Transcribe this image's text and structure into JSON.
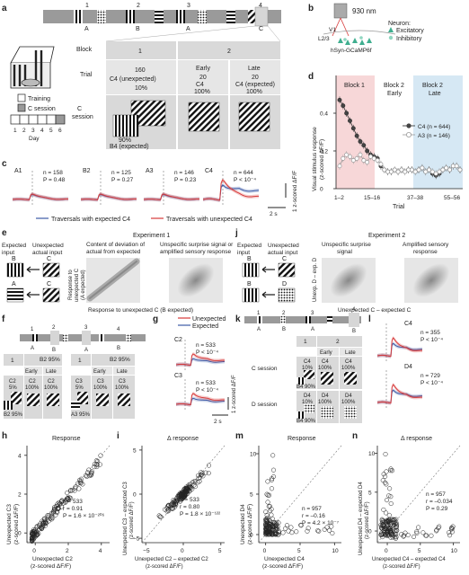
{
  "panel_labels": {
    "a": "a",
    "b": "b",
    "c": "c",
    "d": "d",
    "e": "e",
    "f": "f",
    "g": "g",
    "h": "h",
    "i": "i",
    "j": "j",
    "k": "k",
    "l": "l",
    "m": "m",
    "n": "n"
  },
  "a": {
    "track_nums": [
      "1",
      "2",
      "3",
      "4"
    ],
    "track_letters": [
      "A",
      "B",
      "A",
      "C"
    ],
    "training": "Training",
    "c_session": "C session",
    "day_label": "Day",
    "days": [
      "1",
      "2",
      "3",
      "4",
      "5",
      "6"
    ],
    "table": {
      "block_label": "Block",
      "trial_label": "Trial",
      "csess_label": "C\nsession",
      "block1": "1",
      "block2": "2",
      "early": "Early",
      "late": "Late",
      "t160": "160",
      "t20a": "20",
      "t20b": "20",
      "c4_unexp": "C4 (unexpected)",
      "c4_10": "C4",
      "p10": "10%",
      "c4_100": "C4",
      "p100": "100%",
      "c4_exp": "C4 (expected)",
      "p10b": "10%",
      "p100b": "100%",
      "p90": "90%",
      "b4_exp": "B4 (expected)"
    }
  },
  "b": {
    "wavelength": "930 nm",
    "v1": "V1",
    "l23": "L2/3",
    "construct": "hSyn-GCaMP6f",
    "neuron": "Neuron:",
    "excitatory": "Excitatory",
    "inhibitory": "Inhibitory",
    "colors": {
      "exc": "#3fae8f",
      "inh": "#8fd6c0"
    }
  },
  "c": {
    "units": "1 z-scored ΔF/F",
    "time": "2 s",
    "legend_expected": "Traversals with expected C4",
    "legend_unexpected": "Traversals with unexpected C4",
    "traces": [
      {
        "name": "A1",
        "n": "n = 158",
        "p": "P = 0.48"
      },
      {
        "name": "B2",
        "n": "n = 125",
        "p": "P = 0.27"
      },
      {
        "name": "A3",
        "n": "n = 146",
        "p": "P = 0.23"
      },
      {
        "name": "C4",
        "n": "n = 644",
        "p": "P < 10⁻⁴"
      }
    ]
  },
  "d": {
    "ylabel1": "Visual stimulus response",
    "ylabel2": "(z-scored ΔF/F)",
    "xlabel": "Trial",
    "block1": "Block 1",
    "block2e1": "Block 2",
    "block2e2": "Early",
    "block2l1": "Block 2",
    "block2l2": "Late",
    "leg_c4": "C4 (n = 644)",
    "leg_a3": "A3 (n = 146)"
  },
  "chart_data": [
    {
      "type": "line",
      "series": [
        {
          "name": "C4 (n = 644)",
          "values": [
            0.47,
            0.44,
            0.4,
            0.36,
            0.32,
            0.28,
            0.25,
            0.23,
            0.2,
            0.18,
            0.17,
            0.16,
            0.12,
            0.1,
            0.09,
            0.09,
            0.1,
            0.09,
            0.1,
            0.09,
            0.1,
            0.1,
            0.09,
            0.1,
            0.11,
            0.09,
            0.1,
            0.08,
            0.07,
            0.08,
            0.1,
            0.11,
            0.1,
            0.12,
            0.12,
            0.1
          ]
        },
        {
          "name": "A3 (n = 146)",
          "values": [
            0.12,
            0.16,
            0.18,
            0.17,
            0.15,
            0.16,
            0.18,
            0.15,
            0.14,
            0.17,
            0.16,
            0.15,
            0.13,
            0.1,
            0.09,
            0.09,
            0.1,
            0.09,
            0.1,
            0.09,
            0.1,
            0.1,
            0.09,
            0.1,
            0.11,
            0.09,
            0.1,
            0.09,
            0.08,
            0.09,
            0.1,
            0.11,
            0.1,
            0.12,
            0.12,
            0.1
          ]
        }
      ],
      "x_ticks": [
        "1–2",
        "15–16",
        "37–38",
        "55–56"
      ],
      "y_ticks": [
        "0",
        "0.2",
        "0.4"
      ],
      "ylim": [
        0,
        0.6
      ],
      "xlabel": "Trial",
      "ylabel": "Visual stimulus response (z-scored ΔF/F)"
    },
    {
      "type": "scatter",
      "panel": "h",
      "title": "Response",
      "xlabel": "Unexpected C2 (z-scored ΔF/F)",
      "ylabel": "Unexpected C3 (z-scored ΔF/F)",
      "x_ticks": [
        "0",
        "2",
        "4"
      ],
      "y_ticks": [
        "0",
        "2",
        "4"
      ],
      "xlim": [
        -0.5,
        4.5
      ],
      "ylim": [
        -0.5,
        4.5
      ]
    },
    {
      "type": "scatter",
      "panel": "i",
      "title": "Δ response",
      "xlabel": "Unexpected C2 – expected C2 (z-scored ΔF/F)",
      "ylabel": "Unexpected C3 – expected C3 (z-scored ΔF/F)",
      "x_ticks": [
        "−5",
        "0",
        "5"
      ],
      "y_ticks": [
        "−5",
        "0",
        "5"
      ],
      "xlim": [
        -5.5,
        5.5
      ],
      "ylim": [
        -5.5,
        5.5
      ]
    },
    {
      "type": "scatter",
      "panel": "m",
      "title": "Response",
      "xlabel": "Unexpected C4 (z-scored ΔF/F)",
      "ylabel": "Unexpected D4 (z-scored ΔF/F)",
      "x_ticks": [
        "0",
        "5",
        "10"
      ],
      "y_ticks": [
        "0",
        "5",
        "10"
      ],
      "xlim": [
        -1,
        11
      ],
      "ylim": [
        -1,
        11
      ]
    },
    {
      "type": "scatter",
      "panel": "n",
      "title": "Δ response",
      "xlabel": "Unexpected C4 – expected C4 (z-scored ΔF/F)",
      "ylabel": "Unexpected D4 – expected D4 (z-scored ΔF/F)",
      "x_ticks": [
        "0",
        "5",
        "10"
      ],
      "y_ticks": [
        "0",
        "5",
        "10"
      ],
      "xlim": [
        -1.5,
        11
      ],
      "ylim": [
        -1.5,
        11
      ]
    }
  ],
  "e": {
    "expected_input": "Expected\ninput",
    "unexpected_actual": "Unexpected\nactual input",
    "title": "Experiment 1",
    "sub1": "Content of deviation of\nactual from expected",
    "sub2": "Unspecific surprise signal or\namplified sensory response",
    "ylabel": "Response to\nunexpected C\n(A expected)",
    "xlabel": "Response to unexpected C (B expected)",
    "A": "A",
    "B": "B",
    "C": "C"
  },
  "j": {
    "expected_input": "Expected\ninput",
    "unexpected_actual": "Unexpected\nactual input",
    "title": "Experiment 2",
    "sub1": "Unspecific surprise\nsignal",
    "sub2": "Amplified sensory\nresponse",
    "ylabel": "Unexp. D – exp. D",
    "xlabel": "Unexpected C – expected C",
    "B": "B",
    "C": "C",
    "D": "D"
  },
  "f": {
    "track_nums": [
      "1",
      "2",
      "3",
      "4"
    ],
    "track_letters": [
      "A",
      "B",
      "A",
      "B"
    ],
    "b1": "1",
    "b2": "B2 95%",
    "early": "Early",
    "late": "Late",
    "c2": "C2",
    "p5": "5%",
    "c2b": "C2",
    "p100": "100%",
    "c2c": "C2",
    "p100b": "100%",
    "c3": "C3",
    "p5b": "5%",
    "c3b": "C3",
    "p100c": "100%",
    "c3c": "C3",
    "p100d": "100%",
    "a3": "A3 95%"
  },
  "g": {
    "leg_unexp": "Unexpected",
    "leg_exp": "Expected",
    "t1": "C2",
    "n1": "n = 533",
    "p1": "P < 10⁻⁴",
    "t2": "C3",
    "n2": "n = 533",
    "p2": "P < 10⁻⁴",
    "units": "1 z-scored ΔF/F",
    "time": "2 s"
  },
  "k": {
    "track_nums": [
      "1",
      "2",
      "3",
      "4"
    ],
    "track_letters": [
      "A",
      "B",
      "A",
      "B"
    ],
    "b1": "1",
    "b2": "2",
    "early": "Early",
    "late": "Late",
    "csess": "C session",
    "dsess": "D session",
    "c4a": "C4",
    "p10a": "10%",
    "c4b": "C4",
    "p100a": "100%",
    "c4c": "C4",
    "p100b": "100%",
    "b4a": "B4 90%",
    "d4a": "D4",
    "p10b": "10%",
    "d4b": "D4",
    "p100c": "100%",
    "d4c": "D4",
    "p100d": "100%",
    "b4b": "B4 90%"
  },
  "l": {
    "t1": "C4",
    "n1": "n = 355",
    "p1": "P < 10⁻⁴",
    "t2": "D4",
    "n2": "n = 729",
    "p2": "P < 10⁻⁴"
  },
  "h": {
    "n": "n = 533",
    "r": "r = 0.91",
    "p": "P = 1.6 × 10⁻²⁰⁶"
  },
  "i": {
    "n": "n = 533",
    "r": "r = 0.80",
    "p": "P = 1.8 × 10⁻¹²²"
  },
  "m": {
    "n": "n = 957",
    "r": "r = –0.16",
    "p": "P = 4.2 × 10⁻⁷"
  },
  "n": {
    "n": "n = 957",
    "r": "r = –0.034",
    "p": "P = 0.29"
  },
  "colors": {
    "red": "#d73a3a",
    "blue": "#3c5aa6",
    "pink": "#f7d7d8",
    "lightblue": "#d6e8f4",
    "gray": "#d9d9d9"
  }
}
